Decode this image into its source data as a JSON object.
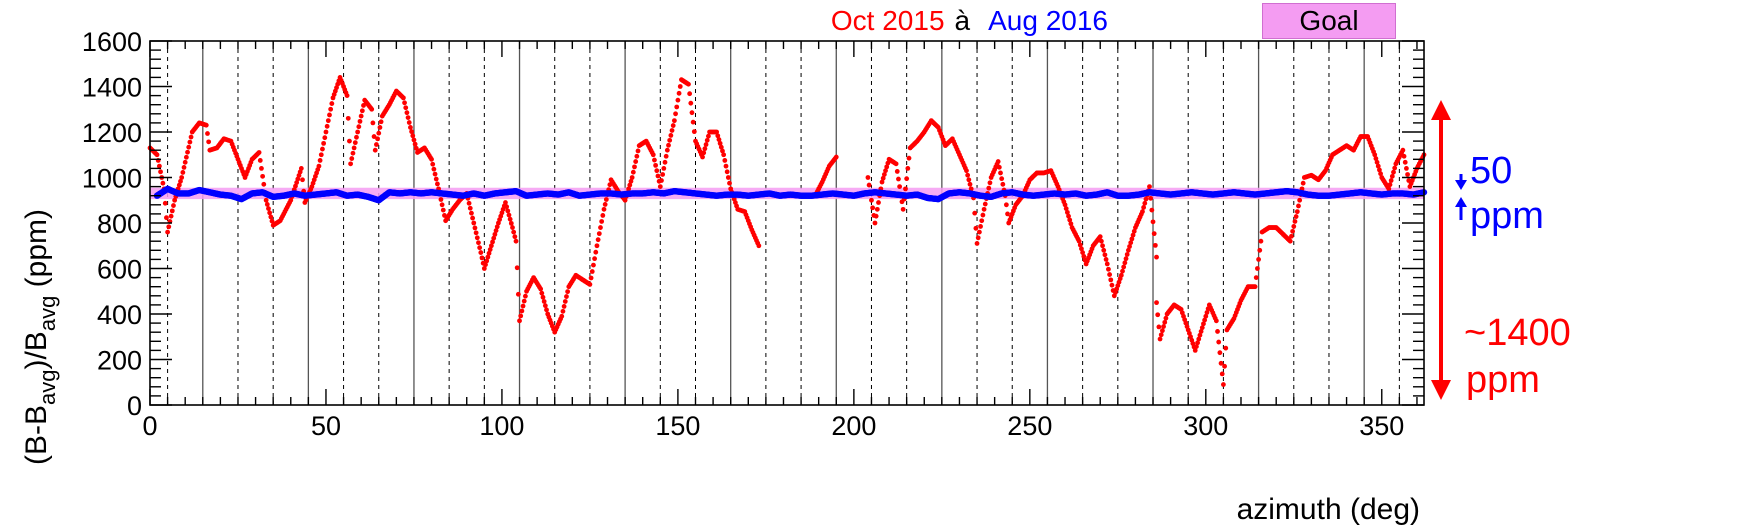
{
  "chart_data": {
    "type": "scatter",
    "title": "",
    "xlabel": "azimuth (deg)",
    "ylabel": "(B-B_avg)/B_avg (ppm)",
    "ylabel_parts": [
      "(B-B",
      "avg",
      ")/B",
      "avg",
      " (ppm)"
    ],
    "xlim": [
      0,
      362
    ],
    "ylim": [
      0,
      1600
    ],
    "x_ticks": [
      0,
      50,
      100,
      150,
      200,
      250,
      300,
      350
    ],
    "y_ticks": [
      0,
      200,
      400,
      600,
      800,
      1000,
      1200,
      1400,
      1600
    ],
    "x_tick_labels": [
      "0",
      "50",
      "100",
      "150",
      "200",
      "250",
      "300",
      "350"
    ],
    "y_tick_labels": [
      "0",
      "200",
      "400",
      "600",
      "800",
      "1000",
      "1200",
      "1400",
      "1600"
    ],
    "solid_vlines": [
      15,
      45,
      75,
      105,
      135,
      165,
      195,
      225,
      255,
      285,
      315,
      345
    ],
    "dashed_vlines": [
      5,
      25,
      35,
      55,
      65,
      85,
      95,
      115,
      125,
      145,
      155,
      175,
      185,
      205,
      215,
      235,
      245,
      265,
      275,
      295,
      305,
      325,
      335,
      355
    ],
    "goal_band": {
      "y0": 905,
      "y1": 955,
      "color": "#f49cf2"
    },
    "legend": {
      "series_a": "Oct 2015",
      "connector": "à",
      "series_b": "Aug 2016",
      "goal": "Goal"
    },
    "series": [
      {
        "name": "Oct 2015",
        "color": "#ff0000",
        "points": [
          [
            0,
            1130
          ],
          [
            2,
            1100
          ],
          [
            4,
            950
          ],
          [
            5,
            760
          ],
          [
            7,
            900
          ],
          [
            9,
            1000
          ],
          [
            12,
            1200
          ],
          [
            14,
            1240
          ],
          [
            16,
            1230
          ],
          [
            17,
            1120
          ],
          [
            19,
            1130
          ],
          [
            21,
            1170
          ],
          [
            23,
            1160
          ],
          [
            25,
            1080
          ],
          [
            27,
            1000
          ],
          [
            29,
            1080
          ],
          [
            31,
            1110
          ],
          [
            33,
            900
          ],
          [
            35,
            790
          ],
          [
            37,
            810
          ],
          [
            39,
            870
          ],
          [
            40,
            900
          ],
          [
            43,
            1040
          ],
          [
            44,
            890
          ],
          [
            46,
            960
          ],
          [
            48,
            1050
          ],
          [
            50,
            1200
          ],
          [
            52,
            1350
          ],
          [
            54,
            1440
          ],
          [
            56,
            1360
          ],
          [
            57,
            1060
          ],
          [
            59,
            1200
          ],
          [
            61,
            1340
          ],
          [
            63,
            1300
          ],
          [
            64,
            1120
          ],
          [
            66,
            1270
          ],
          [
            68,
            1320
          ],
          [
            70,
            1380
          ],
          [
            72,
            1350
          ],
          [
            74,
            1220
          ],
          [
            76,
            1110
          ],
          [
            78,
            1130
          ],
          [
            80,
            1080
          ],
          [
            82,
            950
          ],
          [
            84,
            810
          ],
          [
            86,
            860
          ],
          [
            88,
            900
          ],
          [
            90,
            930
          ],
          [
            92,
            800
          ],
          [
            94,
            670
          ],
          [
            95,
            600
          ],
          [
            97,
            700
          ],
          [
            99,
            800
          ],
          [
            101,
            890
          ],
          [
            103,
            780
          ],
          [
            104,
            720
          ],
          [
            105,
            370
          ],
          [
            107,
            500
          ],
          [
            109,
            560
          ],
          [
            111,
            510
          ],
          [
            113,
            400
          ],
          [
            115,
            320
          ],
          [
            117,
            390
          ],
          [
            119,
            520
          ],
          [
            121,
            570
          ],
          [
            123,
            550
          ],
          [
            125,
            530
          ],
          [
            127,
            700
          ],
          [
            129,
            860
          ],
          [
            131,
            990
          ],
          [
            133,
            940
          ],
          [
            135,
            900
          ],
          [
            137,
            1000
          ],
          [
            139,
            1140
          ],
          [
            141,
            1160
          ],
          [
            143,
            1100
          ],
          [
            145,
            960
          ],
          [
            147,
            1120
          ],
          [
            149,
            1250
          ],
          [
            151,
            1430
          ],
          [
            153,
            1410
          ],
          [
            155,
            1160
          ],
          [
            157,
            1090
          ],
          [
            159,
            1200
          ],
          [
            161,
            1200
          ],
          [
            163,
            1100
          ],
          [
            165,
            950
          ],
          [
            167,
            860
          ],
          [
            169,
            850
          ],
          [
            171,
            770
          ],
          [
            173,
            700
          ],
          [
            189,
            920
          ],
          [
            191,
            980
          ],
          [
            193,
            1050
          ],
          [
            195,
            1090
          ],
          [
            204,
            1000
          ],
          [
            206,
            800
          ],
          [
            208,
            980
          ],
          [
            210,
            1080
          ],
          [
            212,
            1060
          ],
          [
            214,
            860
          ],
          [
            216,
            1130
          ],
          [
            218,
            1160
          ],
          [
            220,
            1200
          ],
          [
            222,
            1250
          ],
          [
            224,
            1220
          ],
          [
            226,
            1140
          ],
          [
            228,
            1170
          ],
          [
            230,
            1100
          ],
          [
            232,
            1030
          ],
          [
            234,
            910
          ],
          [
            235,
            710
          ],
          [
            237,
            860
          ],
          [
            239,
            1000
          ],
          [
            241,
            1070
          ],
          [
            243,
            920
          ],
          [
            244,
            800
          ],
          [
            246,
            880
          ],
          [
            248,
            920
          ],
          [
            250,
            990
          ],
          [
            252,
            1020
          ],
          [
            254,
            1020
          ],
          [
            256,
            1030
          ],
          [
            258,
            960
          ],
          [
            260,
            880
          ],
          [
            262,
            780
          ],
          [
            264,
            720
          ],
          [
            266,
            620
          ],
          [
            268,
            700
          ],
          [
            270,
            740
          ],
          [
            272,
            620
          ],
          [
            274,
            480
          ],
          [
            276,
            570
          ],
          [
            278,
            680
          ],
          [
            280,
            780
          ],
          [
            282,
            850
          ],
          [
            284,
            960
          ],
          [
            286,
            650
          ],
          [
            286,
            450
          ],
          [
            287,
            290
          ],
          [
            289,
            400
          ],
          [
            291,
            440
          ],
          [
            293,
            420
          ],
          [
            295,
            330
          ],
          [
            297,
            240
          ],
          [
            299,
            340
          ],
          [
            301,
            440
          ],
          [
            303,
            370
          ],
          [
            305,
            90
          ],
          [
            306,
            330
          ],
          [
            308,
            380
          ],
          [
            310,
            460
          ],
          [
            312,
            520
          ],
          [
            314,
            520
          ],
          [
            316,
            760
          ],
          [
            318,
            780
          ],
          [
            320,
            780
          ],
          [
            322,
            750
          ],
          [
            324,
            720
          ],
          [
            326,
            850
          ],
          [
            328,
            1000
          ],
          [
            330,
            1010
          ],
          [
            332,
            990
          ],
          [
            334,
            1030
          ],
          [
            336,
            1100
          ],
          [
            338,
            1120
          ],
          [
            340,
            1140
          ],
          [
            342,
            1120
          ],
          [
            344,
            1180
          ],
          [
            346,
            1180
          ],
          [
            348,
            1100
          ],
          [
            350,
            1000
          ],
          [
            352,
            950
          ],
          [
            354,
            1060
          ],
          [
            356,
            1120
          ],
          [
            358,
            960
          ],
          [
            360,
            1040
          ],
          [
            362,
            1100
          ]
        ]
      },
      {
        "name": "Aug 2016",
        "color": "#0000ff",
        "points": [
          [
            2,
            920
          ],
          [
            5,
            950
          ],
          [
            8,
            930
          ],
          [
            11,
            930
          ],
          [
            14,
            945
          ],
          [
            17,
            935
          ],
          [
            20,
            925
          ],
          [
            23,
            920
          ],
          [
            26,
            905
          ],
          [
            29,
            930
          ],
          [
            32,
            935
          ],
          [
            35,
            915
          ],
          [
            38,
            920
          ],
          [
            41,
            930
          ],
          [
            44,
            920
          ],
          [
            47,
            925
          ],
          [
            50,
            930
          ],
          [
            53,
            935
          ],
          [
            56,
            920
          ],
          [
            59,
            925
          ],
          [
            62,
            915
          ],
          [
            65,
            900
          ],
          [
            68,
            935
          ],
          [
            71,
            930
          ],
          [
            74,
            935
          ],
          [
            77,
            930
          ],
          [
            80,
            935
          ],
          [
            83,
            930
          ],
          [
            86,
            925
          ],
          [
            89,
            920
          ],
          [
            92,
            930
          ],
          [
            95,
            920
          ],
          [
            98,
            930
          ],
          [
            101,
            935
          ],
          [
            104,
            940
          ],
          [
            107,
            920
          ],
          [
            110,
            925
          ],
          [
            113,
            930
          ],
          [
            116,
            925
          ],
          [
            119,
            935
          ],
          [
            122,
            920
          ],
          [
            125,
            925
          ],
          [
            128,
            930
          ],
          [
            131,
            930
          ],
          [
            134,
            925
          ],
          [
            137,
            930
          ],
          [
            140,
            930
          ],
          [
            143,
            935
          ],
          [
            146,
            930
          ],
          [
            149,
            940
          ],
          [
            152,
            935
          ],
          [
            155,
            930
          ],
          [
            158,
            925
          ],
          [
            161,
            920
          ],
          [
            164,
            925
          ],
          [
            167,
            925
          ],
          [
            170,
            920
          ],
          [
            173,
            925
          ],
          [
            176,
            930
          ],
          [
            179,
            920
          ],
          [
            182,
            925
          ],
          [
            185,
            920
          ],
          [
            188,
            920
          ],
          [
            191,
            925
          ],
          [
            194,
            930
          ],
          [
            197,
            925
          ],
          [
            200,
            920
          ],
          [
            203,
            930
          ],
          [
            206,
            935
          ],
          [
            209,
            930
          ],
          [
            212,
            925
          ],
          [
            215,
            920
          ],
          [
            218,
            925
          ],
          [
            221,
            910
          ],
          [
            224,
            905
          ],
          [
            227,
            930
          ],
          [
            230,
            935
          ],
          [
            233,
            930
          ],
          [
            236,
            920
          ],
          [
            239,
            915
          ],
          [
            242,
            930
          ],
          [
            245,
            935
          ],
          [
            248,
            925
          ],
          [
            251,
            920
          ],
          [
            254,
            925
          ],
          [
            257,
            930
          ],
          [
            260,
            925
          ],
          [
            263,
            930
          ],
          [
            266,
            920
          ],
          [
            269,
            925
          ],
          [
            272,
            935
          ],
          [
            275,
            920
          ],
          [
            278,
            920
          ],
          [
            281,
            925
          ],
          [
            284,
            935
          ],
          [
            287,
            930
          ],
          [
            290,
            925
          ],
          [
            293,
            930
          ],
          [
            296,
            935
          ],
          [
            299,
            930
          ],
          [
            302,
            925
          ],
          [
            305,
            930
          ],
          [
            308,
            935
          ],
          [
            311,
            930
          ],
          [
            314,
            925
          ],
          [
            317,
            930
          ],
          [
            320,
            935
          ],
          [
            323,
            940
          ],
          [
            326,
            935
          ],
          [
            329,
            925
          ],
          [
            332,
            920
          ],
          [
            335,
            920
          ],
          [
            338,
            925
          ],
          [
            341,
            930
          ],
          [
            344,
            935
          ],
          [
            347,
            930
          ],
          [
            350,
            925
          ],
          [
            353,
            930
          ],
          [
            356,
            930
          ],
          [
            359,
            925
          ],
          [
            362,
            935
          ]
        ]
      }
    ]
  },
  "annotations": {
    "blue_value": "50",
    "blue_unit": "ppm",
    "red_value": "~1400",
    "red_unit": "ppm",
    "blue_color": "#0000ff",
    "red_color": "#ff0000"
  }
}
